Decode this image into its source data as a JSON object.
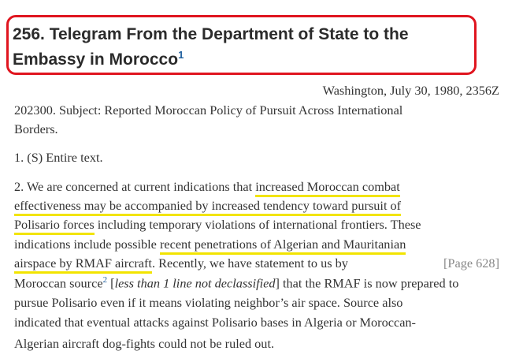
{
  "title_lines": [
    "256. Telegram From the Department of State to the",
    "Embassy in Morocco"
  ],
  "title_footnote": "1",
  "dateline": "Washington, July 30, 1980, 2356Z",
  "subject_lines": [
    "202300. Subject: Reported Moroccan Policy of Pursuit Across International",
    "Borders."
  ],
  "paragraph1": "1. (S) Entire text.",
  "paragraph2": {
    "lines": [
      [
        "2. We are concerned at current indications that ",
        "increased Moroccan combat"
      ],
      [
        "effectiveness may be accompanied by increased tendency toward pursuit of"
      ],
      [
        "Polisario forces",
        " including temporary violations of international frontiers. These"
      ],
      [
        "indications include possible ",
        "recent penetrations of Algerian and Mauritanian"
      ],
      [
        "airspace by RMAF aircraft",
        ". Recently, we have statement to us by"
      ],
      [
        "Moroccan source",
        "2",
        " [",
        "less than 1 line not declassified",
        "] that the RMAF is now prepared to"
      ],
      [
        "pursue Polisario even if it means violating neighbor’s air space. Source also"
      ],
      [
        "indicated that eventual attacks against Polisario bases in Algeria or Moroccan-"
      ],
      [
        "Algerian aircraft dog-fights could not be ruled out."
      ]
    ]
  },
  "page_marker": "[Page 628]"
}
